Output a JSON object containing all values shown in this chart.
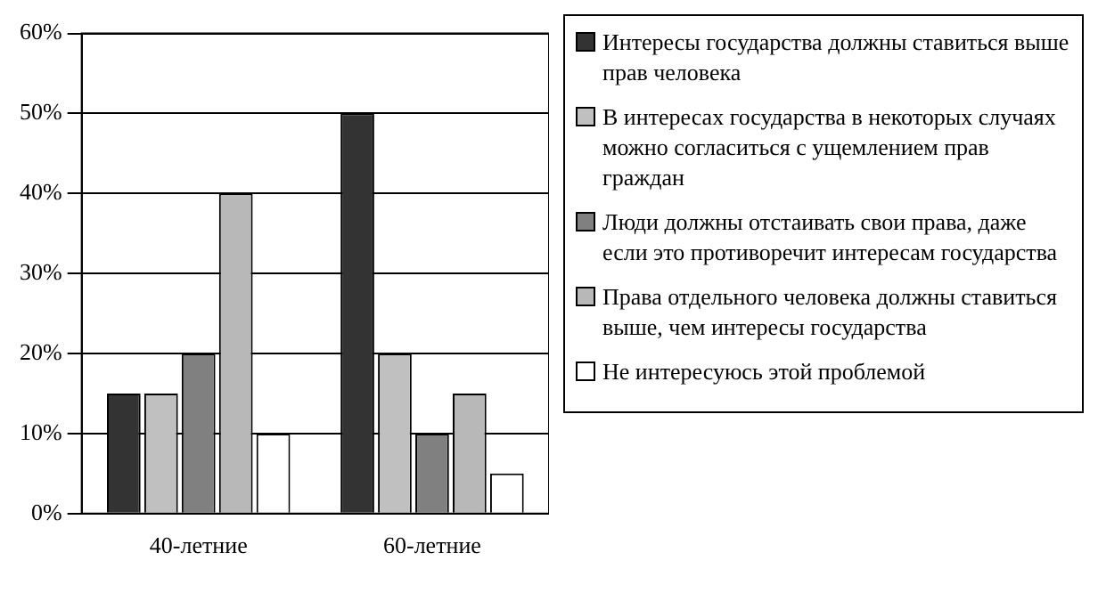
{
  "chart_data": {
    "type": "bar",
    "categories": [
      "40-летние",
      "60-летние"
    ],
    "series": [
      {
        "name": "Интересы государства должны ставиться выше прав человека",
        "color": "#333333",
        "values": [
          15,
          50
        ]
      },
      {
        "name": "В интересах государства в некоторых случаях можно согласиться с ущемлением прав граждан",
        "color": "#c0c0c0",
        "values": [
          15,
          20
        ]
      },
      {
        "name": "Люди должны отстаивать свои права, даже если это противоречит интересам государства",
        "color": "#808080",
        "values": [
          20,
          10
        ]
      },
      {
        "name": "Права отдельного человека должны ставиться выше, чем интересы государства",
        "color": "#b8b8b8",
        "values": [
          40,
          15
        ]
      },
      {
        "name": "Не интересуюсь этой проблемой",
        "color": "#ffffff",
        "values": [
          10,
          5
        ]
      }
    ],
    "ylim": [
      0,
      60
    ],
    "yticks": [
      {
        "value": 0,
        "label": "0%"
      },
      {
        "value": 10,
        "label": "10%"
      },
      {
        "value": 20,
        "label": "20%"
      },
      {
        "value": 30,
        "label": "30%"
      },
      {
        "value": 40,
        "label": "40%"
      },
      {
        "value": 50,
        "label": "50%"
      },
      {
        "value": 60,
        "label": "60%"
      }
    ],
    "grid": "y",
    "legend": "right"
  }
}
